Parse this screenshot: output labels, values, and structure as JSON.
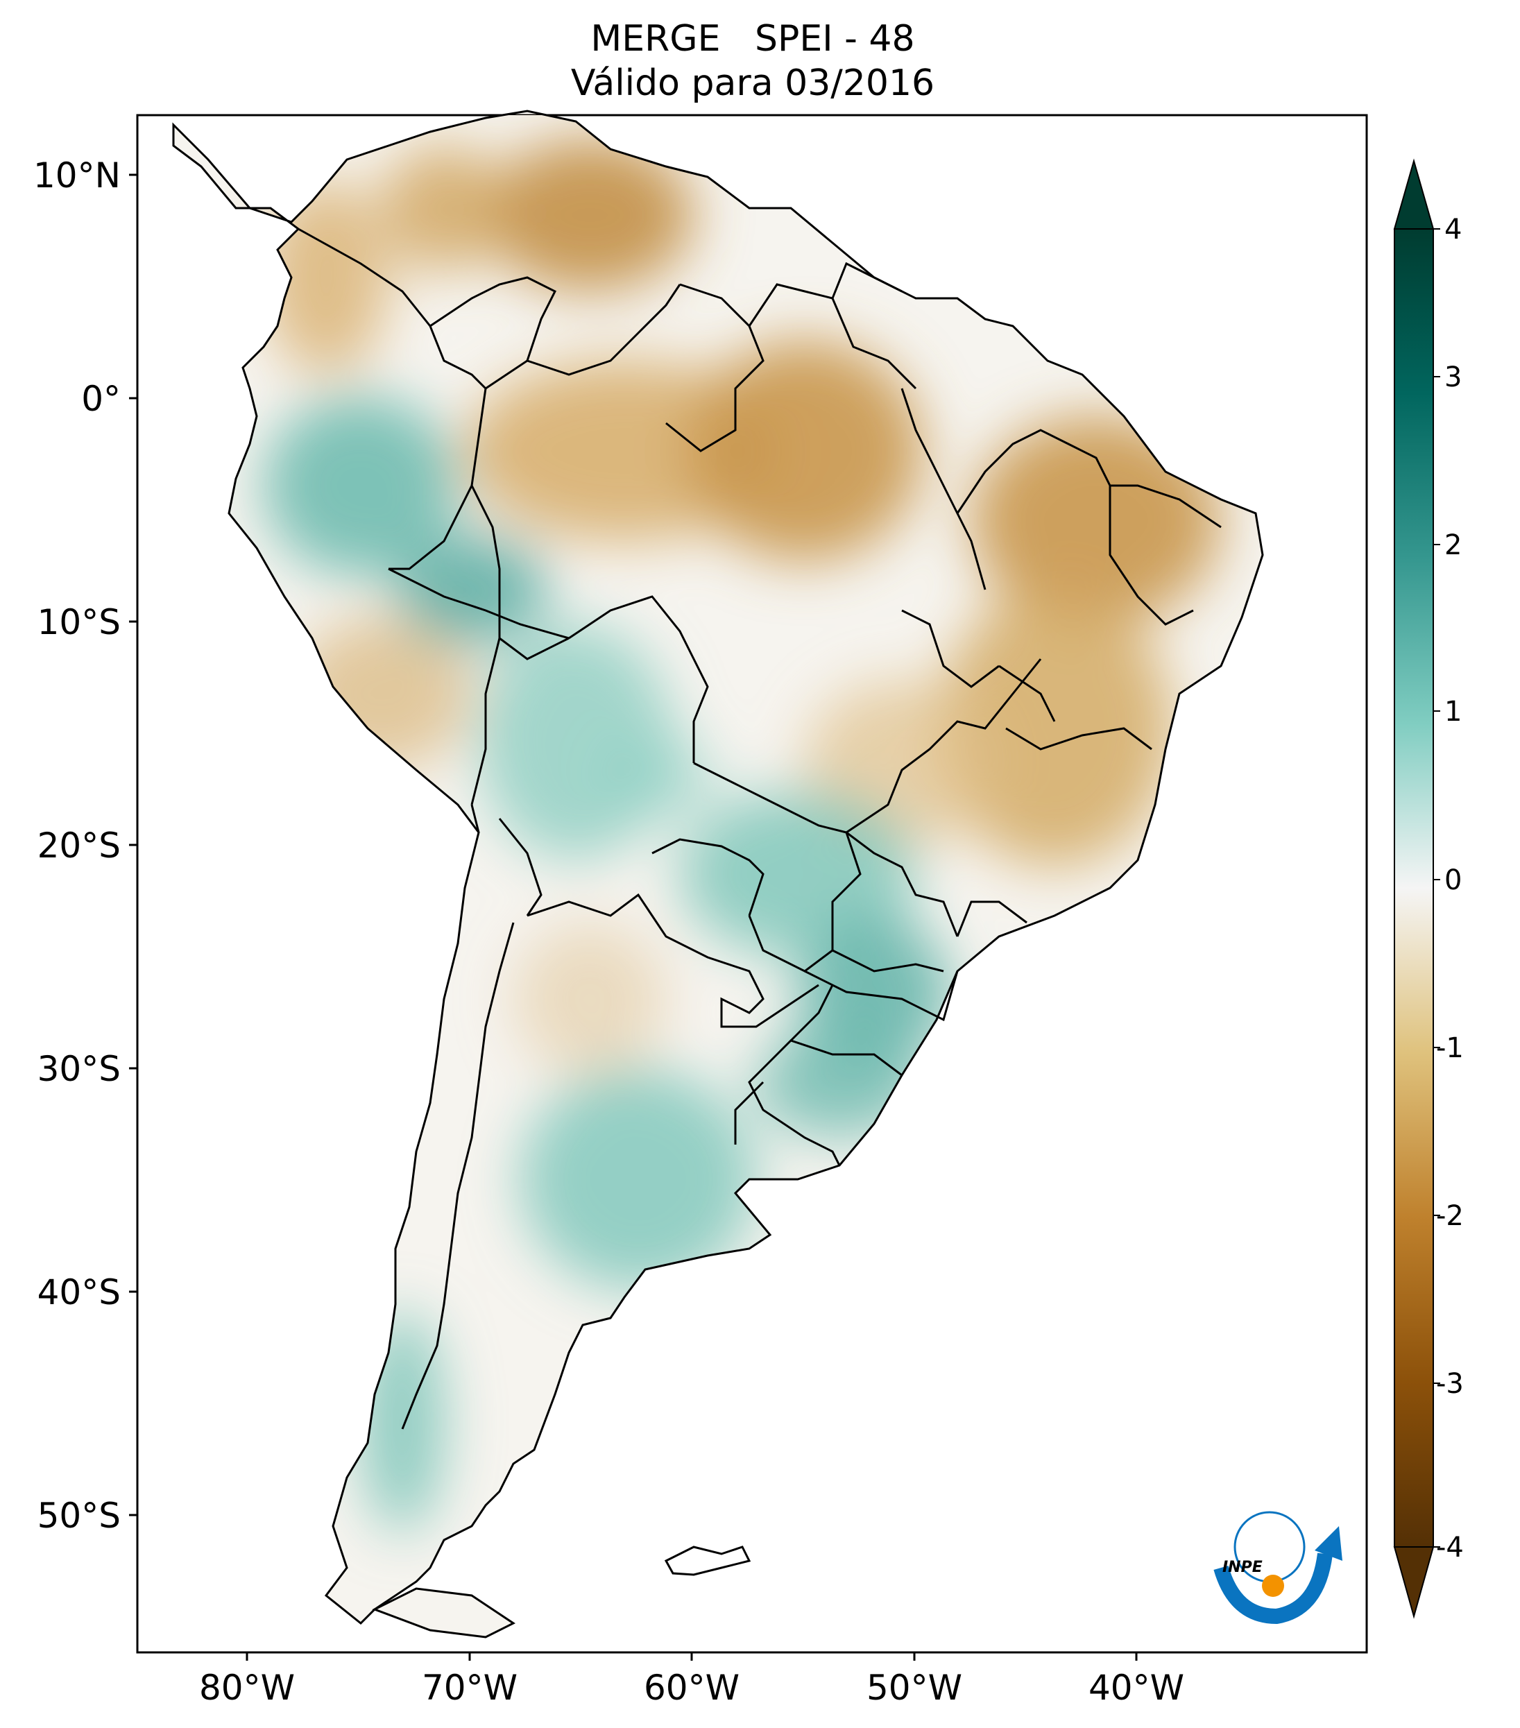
{
  "title": {
    "line1": "MERGE   SPEI - 48",
    "line2": "Válido para 03/2016"
  },
  "map": {
    "region": "South America",
    "lon_range": [
      -85,
      -29
    ],
    "lat_range": [
      -56,
      13
    ],
    "lat_ticks": [
      "10°N",
      "0°",
      "10°S",
      "20°S",
      "30°S",
      "40°S",
      "50°S"
    ],
    "lon_ticks": [
      "80°W",
      "70°W",
      "60°W",
      "50°W",
      "40°W"
    ]
  },
  "colorbar": {
    "ticks": [
      "4",
      "3",
      "2",
      "1",
      "0",
      "-1",
      "-2",
      "-3",
      "-4"
    ],
    "colormap": "BrBG",
    "min_color": "#543005",
    "max_color": "#003c30",
    "mid_color": "#f5f5f5"
  },
  "logo": {
    "text": "INPE",
    "blue": "#0a74c0",
    "orange": "#f39200"
  }
}
